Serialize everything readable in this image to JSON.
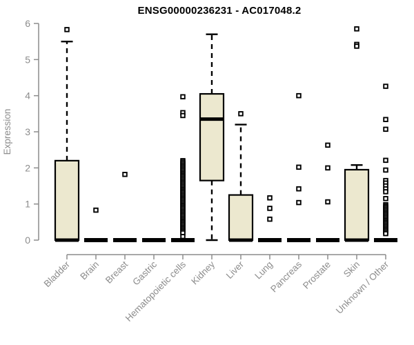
{
  "title": "ENSG00000236231 - AC017048.2",
  "colors": {
    "box_fill": "#ece8cf",
    "box_line": "#000000",
    "axis": "#8c8c8c",
    "title_text": "#000000",
    "background": "#ffffff"
  },
  "chart_data": {
    "type": "boxplot",
    "title": "ENSG00000236231 - AC017048.2",
    "xlabel": "",
    "ylabel": "Expression",
    "ylim": [
      0,
      6
    ],
    "yticks": [
      0,
      1,
      2,
      3,
      4,
      5,
      6
    ],
    "grid": false,
    "legend": "none",
    "categories": [
      "Bladder",
      "Brain",
      "Breast",
      "Gastric",
      "Hematopoietic cells",
      "Kidney",
      "Liver",
      "Lung",
      "Pancreas",
      "Prostate",
      "Skin",
      "Unknown / Other"
    ],
    "series": [
      {
        "name": "Bladder",
        "min": 0,
        "q1": 0,
        "median": 0,
        "q3": 2.2,
        "max": 5.5,
        "outliers": [
          5.83
        ]
      },
      {
        "name": "Brain",
        "min": 0,
        "q1": 0,
        "median": 0,
        "q3": 0,
        "max": 0,
        "outliers": [
          0.83
        ]
      },
      {
        "name": "Breast",
        "min": 0,
        "q1": 0,
        "median": 0,
        "q3": 0,
        "max": 0,
        "outliers": [
          1.82
        ]
      },
      {
        "name": "Gastric",
        "min": 0,
        "q1": 0,
        "median": 0,
        "q3": 0,
        "max": 0,
        "outliers": []
      },
      {
        "name": "Hematopoietic cells",
        "min": 0,
        "q1": 0,
        "median": 0,
        "q3": 0,
        "max": 0,
        "outliers": [
          3.97,
          3.53,
          3.45,
          2.2,
          2.16,
          2.12,
          2.08,
          2.04,
          2.0,
          1.96,
          1.92,
          1.88,
          1.84,
          1.8,
          1.76,
          1.72,
          1.68,
          1.64,
          1.6,
          1.56,
          1.52,
          1.48,
          1.44,
          1.4,
          1.36,
          1.32,
          1.28,
          1.24,
          1.2,
          1.16,
          1.12,
          1.08,
          1.04,
          1.0,
          0.96,
          0.92,
          0.88,
          0.84,
          0.8,
          0.76,
          0.72,
          0.68,
          0.64,
          0.6,
          0.56,
          0.52,
          0.48,
          0.44,
          0.4,
          0.36,
          0.32,
          0.28,
          0.24,
          0.2,
          0.1
        ]
      },
      {
        "name": "Kidney",
        "min": 0,
        "q1": 1.65,
        "median": 3.35,
        "q3": 4.05,
        "max": 5.7,
        "outliers": []
      },
      {
        "name": "Liver",
        "min": 0,
        "q1": 0,
        "median": 0,
        "q3": 1.25,
        "max": 3.2,
        "outliers": [
          3.5
        ]
      },
      {
        "name": "Lung",
        "min": 0,
        "q1": 0,
        "median": 0,
        "q3": 0,
        "max": 0,
        "outliers": [
          1.17,
          0.88,
          0.58
        ]
      },
      {
        "name": "Pancreas",
        "min": 0,
        "q1": 0,
        "median": 0,
        "q3": 0,
        "max": 0,
        "outliers": [
          4.0,
          2.02,
          1.42,
          1.04
        ]
      },
      {
        "name": "Prostate",
        "min": 0,
        "q1": 0,
        "median": 0,
        "q3": 0,
        "max": 0,
        "outliers": [
          2.63,
          2.0,
          1.06
        ]
      },
      {
        "name": "Skin",
        "min": 0,
        "q1": 0,
        "median": 0,
        "q3": 1.95,
        "max": 2.08,
        "outliers": [
          5.85,
          5.42,
          5.37
        ]
      },
      {
        "name": "Unknown / Other",
        "min": 0,
        "q1": 0,
        "median": 0,
        "q3": 0,
        "max": 0,
        "outliers": [
          4.26,
          3.34,
          3.07,
          2.21,
          1.94,
          1.65,
          1.58,
          1.5,
          1.42,
          1.34,
          1.15,
          0.98,
          0.94,
          0.9,
          0.86,
          0.82,
          0.78,
          0.74,
          0.7,
          0.66,
          0.62,
          0.58,
          0.54,
          0.5,
          0.46,
          0.42,
          0.38,
          0.34,
          0.3,
          0.26,
          0.22,
          0.18
        ]
      }
    ]
  }
}
